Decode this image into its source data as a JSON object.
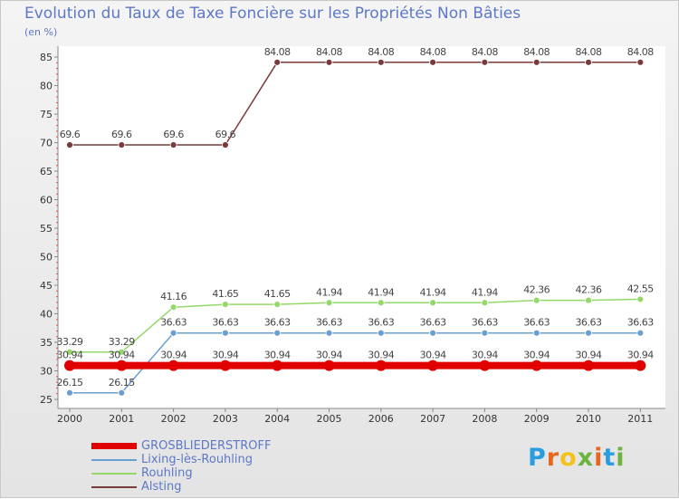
{
  "header": {
    "title": "Evolution du Taux de Taxe Foncière sur les Propriétés Non Bâties",
    "unit": "(en %)"
  },
  "logo": {
    "text": "Proxiti",
    "colors": [
      "#2a9de0",
      "#e8661c",
      "#f3c21b",
      "#6cb33f",
      "#e8661c",
      "#2a9de0",
      "#6cb33f"
    ]
  },
  "chart_data": {
    "type": "line",
    "title": "Evolution du Taux de Taxe Foncière sur les Propriétés Non Bâties",
    "ylabel": "(en %)",
    "xlabel": "",
    "categories": [
      "2000",
      "2001",
      "2002",
      "2003",
      "2004",
      "2005",
      "2006",
      "2007",
      "2008",
      "2009",
      "2010",
      "2011"
    ],
    "ylim": [
      25,
      85
    ],
    "yticks": [
      "25",
      "30",
      "35",
      "40",
      "45",
      "50",
      "55",
      "60",
      "65",
      "70",
      "75",
      "80",
      "85"
    ],
    "grid": false,
    "legend_position": "bottom-left",
    "series": [
      {
        "name": "GROSBLIEDERSTROFF",
        "color": "#e00000",
        "values": [
          30.94,
          30.94,
          30.94,
          30.94,
          30.94,
          30.94,
          30.94,
          30.94,
          30.94,
          30.94,
          30.94,
          30.94
        ],
        "labels": [
          "30.94",
          "30.94",
          "30.94",
          "30.94",
          "30.94",
          "30.94",
          "30.94",
          "30.94",
          "30.94",
          "30.94",
          "30.94",
          "30.94"
        ]
      },
      {
        "name": "Lixing-lès-Rouhling",
        "color": "#6a9fcf",
        "values": [
          26.15,
          26.15,
          36.63,
          36.63,
          36.63,
          36.63,
          36.63,
          36.63,
          36.63,
          36.63,
          36.63,
          36.63
        ],
        "labels": [
          "26.15",
          "26.15",
          "36.63",
          "36.63",
          "36.63",
          "36.63",
          "36.63",
          "36.63",
          "36.63",
          "36.63",
          "36.63",
          "36.63"
        ]
      },
      {
        "name": "Rouhling",
        "color": "#94d86a",
        "values": [
          33.29,
          33.29,
          41.16,
          41.65,
          41.65,
          41.94,
          41.94,
          41.94,
          41.94,
          42.36,
          42.36,
          42.55
        ],
        "labels": [
          "33.29",
          "33.29",
          "41.16",
          "41.65",
          "41.65",
          "41.94",
          "41.94",
          "41.94",
          "41.94",
          "42.36",
          "42.36",
          "42.55"
        ]
      },
      {
        "name": "Alsting",
        "color": "#7b3a3a",
        "values": [
          69.6,
          69.6,
          69.6,
          69.6,
          84.08,
          84.08,
          84.08,
          84.08,
          84.08,
          84.08,
          84.08,
          84.08
        ],
        "labels": [
          "69.6",
          "69.6",
          "69.6",
          "69.6",
          "84.08",
          "84.08",
          "84.08",
          "84.08",
          "84.08",
          "84.08",
          "84.08",
          "84.08"
        ]
      }
    ]
  }
}
